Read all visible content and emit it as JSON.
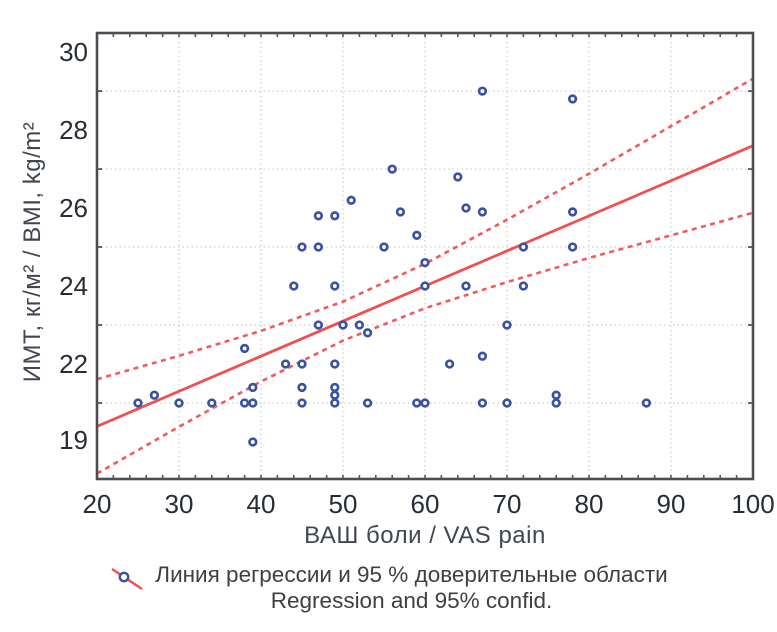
{
  "colors": {
    "point_stroke": "#3a52a4",
    "point_fill": "#ffffff",
    "regression_red": "#ee5152",
    "ci_red": "#f05c5c",
    "grid": "#c9cdd2",
    "frame": "#4c4c52",
    "tick": "#55565c",
    "tick_label": "#282c34",
    "axis_title": "#41464f",
    "legend_text": "#3f3f3f",
    "background": "#ffffff"
  },
  "chart_data": {
    "type": "scatter",
    "title": "",
    "xlabel": "ВАШ боли / VAS pain",
    "ylabel": "ИМТ, кг/м² / BMI, kg/m²",
    "xlim": [
      20,
      100
    ],
    "ylim": [
      19.0,
      30.5
    ],
    "grid": "dotted",
    "legend_position": "bottom-center",
    "xticks": [
      20,
      30,
      40,
      50,
      60,
      70,
      80,
      90,
      100
    ],
    "yticks": [
      {
        "label": "30",
        "at": 30
      },
      {
        "label": "28",
        "at": 28
      },
      {
        "label": "26",
        "at": 26
      },
      {
        "label": "24",
        "at": 24
      },
      {
        "label": "22",
        "at": 22
      },
      {
        "label": "19",
        "at": 20.05
      }
    ],
    "y_gridlines": [
      29,
      27,
      25,
      23,
      21
    ],
    "points": [
      [
        56,
        27.0
      ],
      [
        67,
        29.0
      ],
      [
        78,
        28.8
      ],
      [
        64,
        26.8
      ],
      [
        51,
        26.2
      ],
      [
        65,
        26.0
      ],
      [
        47,
        25.8
      ],
      [
        49,
        25.8
      ],
      [
        57,
        25.9
      ],
      [
        67,
        25.9
      ],
      [
        78,
        25.9
      ],
      [
        59,
        25.3
      ],
      [
        45,
        25.0
      ],
      [
        47,
        25.0
      ],
      [
        55,
        25.0
      ],
      [
        72,
        25.0
      ],
      [
        78,
        25.0
      ],
      [
        60,
        24.6
      ],
      [
        44,
        24.0
      ],
      [
        49,
        24.0
      ],
      [
        60,
        24.0
      ],
      [
        65,
        24.0
      ],
      [
        72,
        24.0
      ],
      [
        47,
        23.0
      ],
      [
        50,
        23.0
      ],
      [
        52,
        23.0
      ],
      [
        53,
        22.8
      ],
      [
        70,
        23.0
      ],
      [
        38,
        22.4
      ],
      [
        67,
        22.2
      ],
      [
        43,
        22.0
      ],
      [
        45,
        22.0
      ],
      [
        49,
        22.0
      ],
      [
        63,
        22.0
      ],
      [
        27,
        21.2
      ],
      [
        39,
        21.4
      ],
      [
        45,
        21.4
      ],
      [
        49,
        21.4
      ],
      [
        49,
        21.2
      ],
      [
        76,
        21.2
      ],
      [
        25,
        21.0
      ],
      [
        30,
        21.0
      ],
      [
        34,
        21.0
      ],
      [
        38,
        21.0
      ],
      [
        39,
        21.0
      ],
      [
        45,
        21.0
      ],
      [
        49,
        21.0
      ],
      [
        53,
        21.0
      ],
      [
        59,
        21.0
      ],
      [
        60,
        21.0
      ],
      [
        67,
        21.0
      ],
      [
        70,
        21.0
      ],
      [
        76,
        21.0
      ],
      [
        87,
        21.0
      ],
      [
        39,
        20.0
      ]
    ],
    "regression_line": {
      "x": [
        20,
        100
      ],
      "y": [
        20.4,
        27.6
      ]
    },
    "ci_upper": {
      "x": [
        20,
        30,
        40,
        50,
        60,
        70,
        80,
        90,
        100
      ],
      "y": [
        21.61,
        22.21,
        22.85,
        23.6,
        24.57,
        25.7,
        26.88,
        28.1,
        29.32
      ]
    },
    "ci_lower": {
      "x": [
        20,
        30,
        40,
        50,
        60,
        70,
        80,
        90,
        100
      ],
      "y": [
        19.19,
        20.39,
        21.55,
        22.6,
        23.43,
        24.1,
        24.72,
        25.3,
        25.88
      ]
    },
    "legend": {
      "line1": "Линия регрессии и 95 % доверительные области",
      "line2": "Regression and 95% confid."
    }
  }
}
